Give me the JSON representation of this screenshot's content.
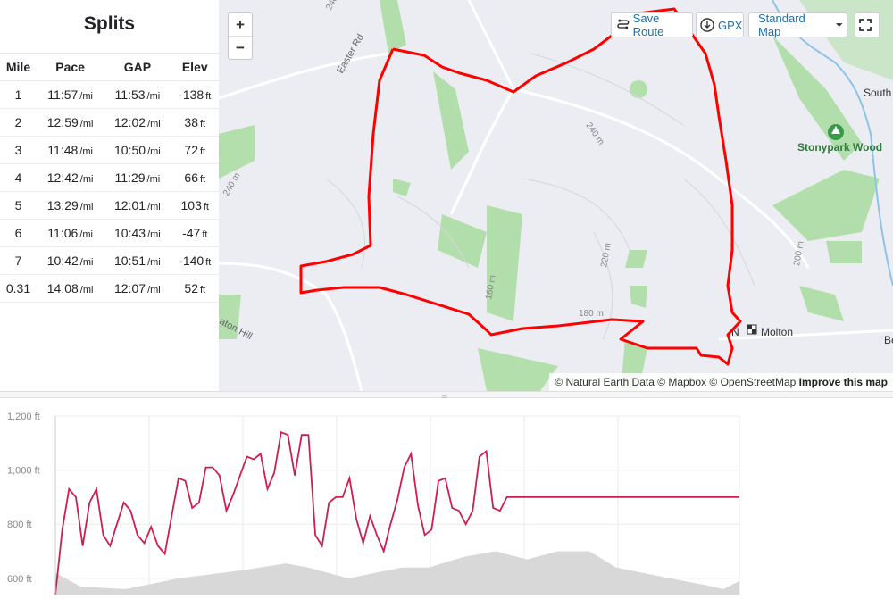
{
  "splits": {
    "title": "Splits",
    "columns": [
      "Mile",
      "Pace",
      "GAP",
      "Elev"
    ],
    "rows": [
      {
        "mile": "1",
        "pace": "11:57",
        "gap": "11:53",
        "elev": "-138"
      },
      {
        "mile": "2",
        "pace": "12:59",
        "gap": "12:02",
        "elev": "38"
      },
      {
        "mile": "3",
        "pace": "11:48",
        "gap": "10:50",
        "elev": "72"
      },
      {
        "mile": "4",
        "pace": "12:42",
        "gap": "11:29",
        "elev": "66"
      },
      {
        "mile": "5",
        "pace": "13:29",
        "gap": "12:01",
        "elev": "103"
      },
      {
        "mile": "6",
        "pace": "11:06",
        "gap": "10:43",
        "elev": "-47"
      },
      {
        "mile": "7",
        "pace": "10:42",
        "gap": "10:51",
        "elev": "-140"
      },
      {
        "mile": "0.31",
        "pace": "14:08",
        "gap": "12:07",
        "elev": "52"
      }
    ],
    "pace_unit": "/mi",
    "elev_unit": "ft"
  },
  "map": {
    "zoom_in": "+",
    "zoom_out": "−",
    "save_route": "Save Route",
    "gpx": "GPX",
    "map_style": "Standard Map",
    "attribution_prefix": "© Natural Earth Data © Mapbox © OpenStreetMap",
    "attribution_link": "Improve this map",
    "places": {
      "stonypark": "Stonypark Wood",
      "south": "South",
      "molton_a": "N",
      "molton_b": "Molton",
      "easter_rd": "Easter Rd",
      "aton_hill": "aton Hill",
      "be": "Be"
    },
    "contours": [
      "240",
      "240 m",
      "240 m",
      "220 m",
      "180 m",
      "160 m",
      "200 m"
    ],
    "route_color": "#ff0000",
    "woods_color": "#a8dca0"
  },
  "chart_data": {
    "type": "line",
    "ylabel": "",
    "y_ticks": [
      "1,200 ft",
      "1,000 ft",
      "800 ft",
      "600 ft"
    ],
    "ylim": [
      540,
      1200
    ],
    "series": [
      {
        "x": [
          0,
          1,
          2,
          3,
          4,
          5,
          6,
          7,
          8,
          9,
          10,
          11,
          12,
          13,
          14,
          15,
          16,
          17,
          18,
          19,
          20,
          21,
          22,
          23,
          24,
          25,
          26,
          27,
          28,
          29,
          30,
          31,
          32,
          33,
          34,
          35,
          36,
          37,
          38,
          39,
          40,
          41,
          42,
          43,
          44,
          45,
          46,
          47,
          48,
          49,
          50,
          51,
          52,
          53,
          54,
          55,
          56,
          57,
          58,
          59,
          60,
          61,
          62,
          63,
          64,
          65,
          66,
          67,
          68,
          69,
          70,
          71,
          72,
          73,
          74,
          75,
          76,
          77,
          78,
          79,
          80,
          81,
          82,
          83,
          84,
          85,
          86,
          87,
          88,
          89,
          90,
          91,
          92,
          93,
          94,
          95,
          96,
          97,
          98,
          99,
          100
        ],
        "values": [
          540,
          780,
          930,
          900,
          720,
          880,
          930,
          760,
          720,
          800,
          880,
          850,
          760,
          730,
          790,
          720,
          690,
          830,
          970,
          960,
          860,
          880,
          1010,
          1010,
          980,
          850,
          910,
          980,
          1050,
          1040,
          1060,
          930,
          990,
          1140,
          1130,
          980,
          1130,
          1130,
          760,
          720,
          880,
          900,
          900,
          970,
          820,
          730,
          830,
          760,
          700,
          800,
          890,
          1010,
          1060,
          870,
          760,
          780,
          960,
          970,
          860,
          850,
          800,
          850,
          1050,
          1070,
          860,
          850,
          900,
          900,
          900,
          900,
          900,
          900,
          900,
          900,
          900,
          900,
          900,
          900,
          900,
          900,
          900,
          900,
          900,
          900,
          900,
          900,
          900,
          900,
          900,
          900,
          900,
          900,
          900,
          900,
          900,
          900,
          900,
          900,
          900,
          900,
          900
        ]
      }
    ],
    "background_ridge_color": "#d8d8d8",
    "line_color": "#cc1f4f"
  }
}
